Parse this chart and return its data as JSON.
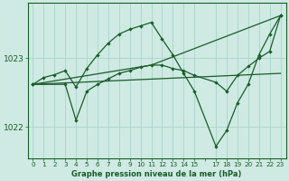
{
  "bg_color": "#ceeae3",
  "line_color": "#1a5c2a",
  "grid_color": "#aad4cb",
  "title": "Graphe pression niveau de la mer (hPa)",
  "ylabel_ticks": [
    1022,
    1023
  ],
  "xlim": [
    -0.5,
    23.5
  ],
  "ylim": [
    1021.55,
    1023.8
  ],
  "xticks": [
    0,
    1,
    2,
    3,
    4,
    5,
    6,
    7,
    8,
    9,
    10,
    11,
    12,
    13,
    14,
    15,
    17,
    18,
    19,
    20,
    21,
    22,
    23
  ],
  "line1": {
    "x": [
      0,
      1,
      2,
      3,
      4,
      5,
      6,
      7,
      8,
      9,
      10,
      11,
      12,
      13,
      14,
      15,
      17,
      18,
      19,
      20,
      21,
      22,
      23
    ],
    "y": [
      1022.62,
      1022.72,
      1022.76,
      1022.82,
      1022.58,
      1022.85,
      1023.05,
      1023.22,
      1023.35,
      1023.42,
      1023.47,
      1023.52,
      1023.28,
      1023.05,
      1022.78,
      1022.52,
      1021.72,
      1021.95,
      1022.35,
      1022.62,
      1023.05,
      1023.35,
      1023.62
    ]
  },
  "line2": {
    "x": [
      0,
      3,
      4,
      5,
      6,
      7,
      8,
      9,
      10,
      11,
      12,
      13,
      14,
      15,
      17,
      18,
      19,
      20,
      21,
      22,
      23
    ],
    "y": [
      1022.62,
      1022.62,
      1022.1,
      1022.52,
      1022.62,
      1022.7,
      1022.78,
      1022.82,
      1022.87,
      1022.9,
      1022.9,
      1022.85,
      1022.82,
      1022.75,
      1022.65,
      1022.52,
      1022.75,
      1022.88,
      1023.0,
      1023.1,
      1023.62
    ]
  },
  "line3": {
    "x": [
      0,
      23
    ],
    "y": [
      1022.62,
      1022.78
    ]
  },
  "line4": {
    "x": [
      0,
      11,
      23
    ],
    "y": [
      1022.62,
      1022.9,
      1023.62
    ]
  }
}
